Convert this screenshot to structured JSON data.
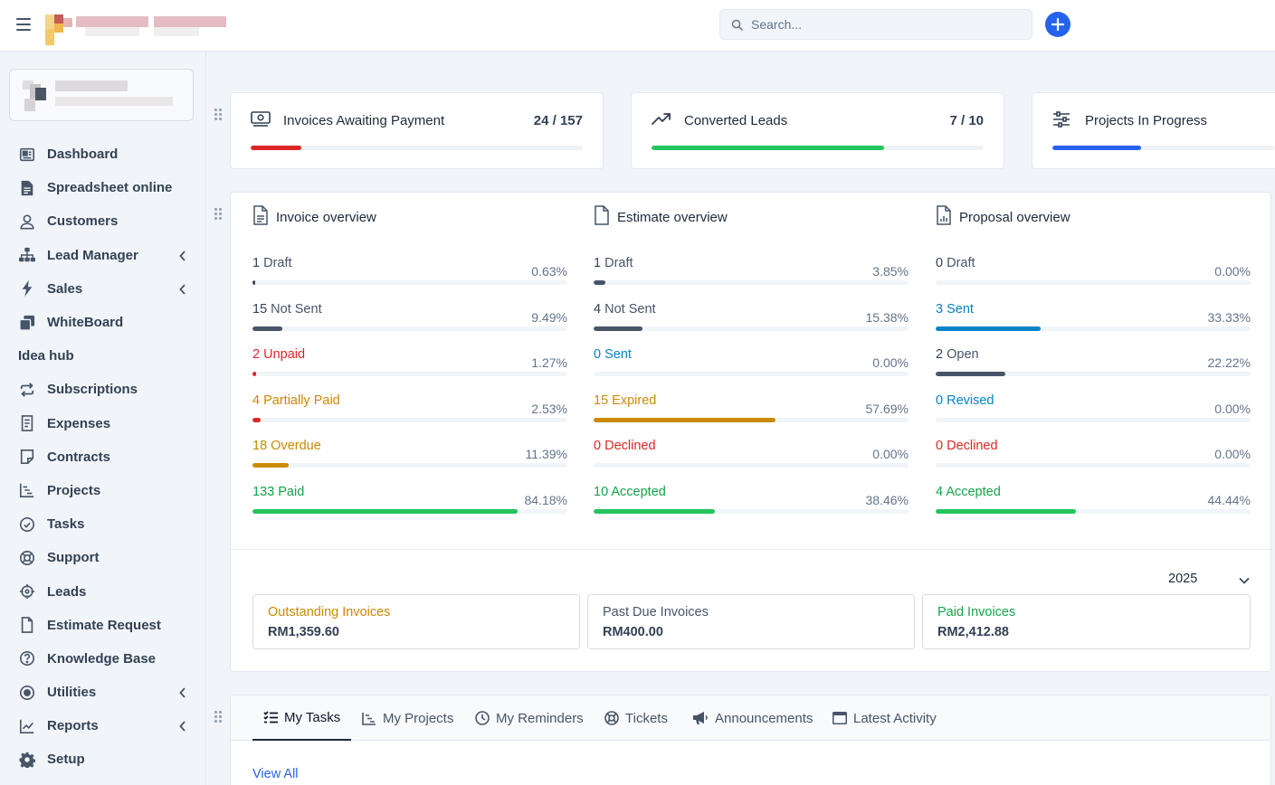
{
  "search": {
    "placeholder": "Search..."
  },
  "sidebar": {
    "items": [
      {
        "label": "Dashboard",
        "icon": "dashboard-icon"
      },
      {
        "label": "Spreadsheet online",
        "icon": "document-icon"
      },
      {
        "label": "Customers",
        "icon": "user-icon"
      },
      {
        "label": "Lead Manager",
        "icon": "sitemap-icon",
        "chevron": true
      },
      {
        "label": "Sales",
        "icon": "bolt-icon",
        "chevron": true
      },
      {
        "label": "WhiteBoard",
        "icon": "clone-icon"
      },
      {
        "label": "Idea hub",
        "icon": ""
      },
      {
        "label": "Subscriptions",
        "icon": "repeat-icon"
      },
      {
        "label": "Expenses",
        "icon": "receipt-icon"
      },
      {
        "label": "Contracts",
        "icon": "note-icon"
      },
      {
        "label": "Projects",
        "icon": "chart-gantt-icon"
      },
      {
        "label": "Tasks",
        "icon": "check-circle-icon"
      },
      {
        "label": "Support",
        "icon": "life-ring-icon"
      },
      {
        "label": "Leads",
        "icon": "crosshair-icon"
      },
      {
        "label": "Estimate Request",
        "icon": "file-icon"
      },
      {
        "label": "Knowledge Base",
        "icon": "question-circle-icon"
      },
      {
        "label": "Utilities",
        "icon": "dot-circle-icon",
        "chevron": true
      },
      {
        "label": "Reports",
        "icon": "line-chart-icon",
        "chevron": true
      },
      {
        "label": "Setup",
        "icon": "cog-icon"
      }
    ]
  },
  "stats": [
    {
      "title": "Invoices Awaiting Payment",
      "count": "24 / 157",
      "progress": 0.153,
      "color": "#dc2626"
    },
    {
      "title": "Converted Leads",
      "count": "7 / 10",
      "progress": 0.7,
      "color": "#22c55e"
    },
    {
      "title": "Projects In Progress",
      "count": "",
      "progress": 0.4,
      "color": "#2563eb"
    }
  ],
  "overview": {
    "columns": [
      {
        "title": "Invoice overview",
        "rows": [
          {
            "count": "1",
            "label": "Draft",
            "pct": "0.63%",
            "value": 0.0063,
            "color": "#475569",
            "bar": "#334155"
          },
          {
            "count": "15",
            "label": "Not Sent",
            "pct": "9.49%",
            "value": 0.0949,
            "color": "#475569",
            "bar": "#475569"
          },
          {
            "count": "2",
            "label": "Unpaid",
            "pct": "1.27%",
            "value": 0.0127,
            "color": "#dc2626",
            "bar": "#dc2626"
          },
          {
            "count": "4",
            "label": "Partially Paid",
            "pct": "2.53%",
            "value": 0.0253,
            "color": "#ca8a04",
            "bar": "#dc2626"
          },
          {
            "count": "18",
            "label": "Overdue",
            "pct": "11.39%",
            "value": 0.1139,
            "color": "#ca8a04",
            "bar": "#ca8a04"
          },
          {
            "count": "133",
            "label": "Paid",
            "pct": "84.18%",
            "value": 0.8418,
            "color": "#16a34a",
            "bar": "#22c55e"
          }
        ]
      },
      {
        "title": "Estimate overview",
        "rows": [
          {
            "count": "1",
            "label": "Draft",
            "pct": "3.85%",
            "value": 0.0385,
            "color": "#475569",
            "bar": "#475569"
          },
          {
            "count": "4",
            "label": "Not Sent",
            "pct": "15.38%",
            "value": 0.1538,
            "color": "#475569",
            "bar": "#475569"
          },
          {
            "count": "0",
            "label": "Sent",
            "pct": "0.00%",
            "value": 0,
            "color": "#0284c7",
            "bar": "#0284c7"
          },
          {
            "count": "15",
            "label": "Expired",
            "pct": "57.69%",
            "value": 0.5769,
            "color": "#ca8a04",
            "bar": "#ca8a04"
          },
          {
            "count": "0",
            "label": "Declined",
            "pct": "0.00%",
            "value": 0,
            "color": "#dc2626",
            "bar": "#dc2626"
          },
          {
            "count": "10",
            "label": "Accepted",
            "pct": "38.46%",
            "value": 0.3846,
            "color": "#16a34a",
            "bar": "#22c55e"
          }
        ]
      },
      {
        "title": "Proposal overview",
        "rows": [
          {
            "count": "0",
            "label": "Draft",
            "pct": "0.00%",
            "value": 0,
            "color": "#475569",
            "bar": "#475569"
          },
          {
            "count": "3",
            "label": "Sent",
            "pct": "33.33%",
            "value": 0.3333,
            "color": "#0284c7",
            "bar": "#0284c7"
          },
          {
            "count": "2",
            "label": "Open",
            "pct": "22.22%",
            "value": 0.2222,
            "color": "#475569",
            "bar": "#475569"
          },
          {
            "count": "0",
            "label": "Revised",
            "pct": "0.00%",
            "value": 0,
            "color": "#0284c7",
            "bar": "#0284c7"
          },
          {
            "count": "0",
            "label": "Declined",
            "pct": "0.00%",
            "value": 0,
            "color": "#dc2626",
            "bar": "#dc2626"
          },
          {
            "count": "4",
            "label": "Accepted",
            "pct": "44.44%",
            "value": 0.4444,
            "color": "#16a34a",
            "bar": "#22c55e"
          }
        ]
      }
    ],
    "year": "2025",
    "summary": [
      {
        "label": "Outstanding Invoices",
        "value": "RM1,359.60",
        "color": "#ca8a04"
      },
      {
        "label": "Past Due Invoices",
        "value": "RM400.00",
        "color": "#475569"
      },
      {
        "label": "Paid Invoices",
        "value": "RM2,412.88",
        "color": "#16a34a"
      }
    ]
  },
  "tabs": [
    {
      "label": "My Tasks",
      "icon": "list-check-icon",
      "active": true
    },
    {
      "label": "My Projects",
      "icon": "chart-gantt-icon"
    },
    {
      "label": "My Reminders",
      "icon": "clock-icon"
    },
    {
      "label": "Tickets",
      "icon": "life-ring-icon"
    },
    {
      "label": "Announcements",
      "icon": "bullhorn-icon"
    },
    {
      "label": "Latest Activity",
      "icon": "window-icon"
    }
  ],
  "view_all": "View All"
}
